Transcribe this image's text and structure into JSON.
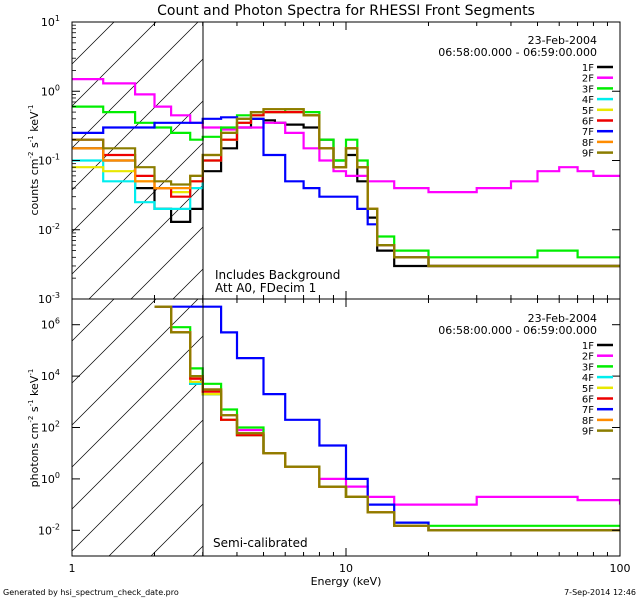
{
  "chart_data": [
    {
      "type": "line",
      "title": "Count and Photon Spectra for RHESSI Front Segments",
      "xlabel": "Energy (keV)",
      "ylabel": "counts cm-2 s-1 keV-1",
      "ylabel_parts": [
        "counts cm",
        "-2",
        " s",
        "-1",
        " keV",
        "-1"
      ],
      "xscale": "log",
      "yscale": "log",
      "xlim": [
        1,
        100
      ],
      "ylim": [
        0.001,
        10
      ],
      "y_ticks": [
        0.001,
        0.01,
        0.1,
        1,
        10
      ],
      "y_tick_labels": [
        {
          "base": "10",
          "exp": "-3"
        },
        {
          "base": "10",
          "exp": "-2"
        },
        {
          "base": "10",
          "exp": "-1"
        },
        {
          "base": "10",
          "exp": "0"
        },
        {
          "base": "10",
          "exp": "1"
        }
      ],
      "date": "23-Feb-2004",
      "time_range": "06:58:00.000 - 06:59:00.000",
      "annotations": [
        "Includes Background",
        "Att A0, FDecim 1"
      ],
      "legend_position": "top-right",
      "series": [
        {
          "name": "1F",
          "color": "#000000",
          "x": [
            1,
            1.3,
            1.7,
            2.0,
            2.3,
            2.7,
            3.0,
            3.5,
            4.0,
            4.5,
            5.0,
            5.5,
            6.0,
            7.0,
            8.0,
            9.0,
            10.0,
            11.0,
            12.0,
            13.0,
            15.0,
            20.0,
            30.0,
            50.0,
            70.0,
            100.0
          ],
          "y": [
            0.15,
            0.1,
            0.04,
            0.02,
            0.013,
            0.02,
            0.07,
            0.15,
            0.3,
            0.4,
            0.38,
            0.35,
            0.33,
            0.3,
            0.2,
            0.1,
            0.12,
            0.05,
            0.015,
            0.005,
            0.003,
            0.003,
            0.003,
            0.003,
            0.003,
            0.003
          ]
        },
        {
          "name": "2F",
          "color": "#ff00ff",
          "x": [
            1,
            1.3,
            1.7,
            2.0,
            2.3,
            2.7,
            3.0,
            3.5,
            4.0,
            5.0,
            6.0,
            7.0,
            8.0,
            9.0,
            10.0,
            12.0,
            15.0,
            20.0,
            30.0,
            40.0,
            50.0,
            60.0,
            70.0,
            80.0,
            90.0,
            100.0
          ],
          "y": [
            1.5,
            1.3,
            0.9,
            0.6,
            0.45,
            0.35,
            0.3,
            0.28,
            0.3,
            0.35,
            0.25,
            0.15,
            0.1,
            0.07,
            0.06,
            0.05,
            0.04,
            0.035,
            0.04,
            0.05,
            0.07,
            0.08,
            0.07,
            0.06,
            0.06,
            0.06
          ]
        },
        {
          "name": "3F",
          "color": "#00ee00",
          "x": [
            1,
            1.3,
            1.7,
            2.0,
            2.3,
            2.7,
            3.0,
            3.5,
            4.0,
            4.5,
            5.0,
            6.0,
            7.0,
            8.0,
            9.0,
            10.0,
            11.0,
            12.0,
            13.0,
            15.0,
            20.0,
            30.0,
            50.0,
            70.0,
            100.0
          ],
          "y": [
            0.6,
            0.5,
            0.35,
            0.3,
            0.25,
            0.2,
            0.22,
            0.3,
            0.45,
            0.5,
            0.5,
            0.55,
            0.5,
            0.2,
            0.1,
            0.2,
            0.1,
            0.02,
            0.008,
            0.005,
            0.004,
            0.004,
            0.005,
            0.004,
            0.004
          ]
        },
        {
          "name": "4F",
          "color": "#00eeee",
          "x": [
            1,
            1.3,
            1.7,
            2.0,
            2.3,
            2.7,
            3.0,
            3.5,
            4.0,
            4.5,
            5.0,
            6.0,
            7.0,
            8.0,
            9.0,
            10.0,
            11.0,
            12.0,
            13.0,
            15.0,
            20.0,
            30.0,
            50.0,
            70.0,
            100.0
          ],
          "y": [
            0.1,
            0.05,
            0.025,
            0.02,
            0.02,
            0.04,
            0.1,
            0.2,
            0.35,
            0.45,
            0.5,
            0.5,
            0.45,
            0.15,
            0.08,
            0.15,
            0.08,
            0.02,
            0.006,
            0.004,
            0.003,
            0.003,
            0.003,
            0.003,
            0.003
          ]
        },
        {
          "name": "5F",
          "color": "#e8e800",
          "x": [
            1,
            1.3,
            1.7,
            2.0,
            2.3,
            2.7,
            3.0,
            3.5,
            4.0,
            4.5,
            5.0,
            6.0,
            7.0,
            8.0,
            9.0,
            10.0,
            11.0,
            12.0,
            13.0,
            15.0,
            20.0,
            30.0,
            50.0,
            70.0,
            100.0
          ],
          "y": [
            0.08,
            0.07,
            0.05,
            0.04,
            0.035,
            0.05,
            0.1,
            0.2,
            0.35,
            0.45,
            0.5,
            0.5,
            0.45,
            0.15,
            0.08,
            0.15,
            0.08,
            0.02,
            0.006,
            0.004,
            0.003,
            0.003,
            0.003,
            0.003,
            0.003
          ]
        },
        {
          "name": "6F",
          "color": "#ee0000",
          "x": [
            1,
            1.3,
            1.7,
            2.0,
            2.3,
            2.7,
            3.0,
            3.5,
            4.0,
            4.5,
            5.0,
            6.0,
            7.0,
            8.0,
            9.0,
            10.0,
            11.0,
            12.0,
            13.0,
            15.0,
            20.0,
            30.0,
            50.0,
            70.0,
            100.0
          ],
          "y": [
            0.2,
            0.12,
            0.06,
            0.04,
            0.03,
            0.05,
            0.1,
            0.2,
            0.35,
            0.45,
            0.5,
            0.5,
            0.45,
            0.15,
            0.08,
            0.15,
            0.08,
            0.02,
            0.006,
            0.004,
            0.003,
            0.003,
            0.003,
            0.003,
            0.003
          ]
        },
        {
          "name": "7F",
          "color": "#0000ff",
          "x": [
            1,
            1.3,
            1.7,
            2.0,
            2.3,
            2.7,
            3.0,
            3.5,
            4.0,
            5.0,
            6.0,
            7.0,
            8.0,
            9.0,
            10.0,
            11.0,
            12.0,
            13.0,
            15.0,
            20.0,
            30.0,
            50.0,
            70.0,
            100.0
          ],
          "y": [
            0.25,
            0.3,
            0.3,
            0.35,
            0.35,
            0.35,
            0.4,
            0.42,
            0.4,
            0.12,
            0.05,
            0.04,
            0.03,
            0.03,
            0.03,
            0.02,
            0.012,
            0.006,
            0.004,
            0.003,
            0.003,
            0.003,
            0.003,
            0.003
          ]
        },
        {
          "name": "8F",
          "color": "#ff8c00",
          "x": [
            1,
            1.3,
            1.7,
            2.0,
            2.3,
            2.7,
            3.0,
            3.5,
            4.0,
            4.5,
            5.0,
            6.0,
            7.0,
            8.0,
            9.0,
            10.0,
            11.0,
            12.0,
            13.0,
            15.0,
            20.0,
            30.0,
            50.0,
            70.0,
            100.0
          ],
          "y": [
            0.15,
            0.1,
            0.05,
            0.04,
            0.04,
            0.06,
            0.12,
            0.25,
            0.4,
            0.5,
            0.55,
            0.55,
            0.45,
            0.15,
            0.08,
            0.15,
            0.08,
            0.02,
            0.006,
            0.004,
            0.003,
            0.003,
            0.003,
            0.003,
            0.003
          ]
        },
        {
          "name": "9F",
          "color": "#8b7d00",
          "x": [
            1,
            1.3,
            1.7,
            2.0,
            2.3,
            2.7,
            3.0,
            3.5,
            4.0,
            4.5,
            5.0,
            6.0,
            7.0,
            8.0,
            9.0,
            10.0,
            11.0,
            12.0,
            13.0,
            15.0,
            20.0,
            30.0,
            50.0,
            70.0,
            100.0
          ],
          "y": [
            0.2,
            0.15,
            0.08,
            0.05,
            0.045,
            0.06,
            0.12,
            0.25,
            0.4,
            0.5,
            0.55,
            0.55,
            0.45,
            0.15,
            0.08,
            0.15,
            0.08,
            0.02,
            0.006,
            0.004,
            0.003,
            0.003,
            0.003,
            0.003,
            0.003
          ]
        }
      ]
    },
    {
      "type": "line",
      "xlabel": "Energy (keV)",
      "ylabel": "photons cm-2 s-1 keV-1",
      "ylabel_parts": [
        "photons cm",
        "-2",
        " s",
        "-1",
        " keV",
        "-1"
      ],
      "xscale": "log",
      "yscale": "log",
      "xlim": [
        1,
        100
      ],
      "ylim": [
        0.001,
        10000000
      ],
      "x_ticks": [
        1,
        10,
        100
      ],
      "x_tick_labels": [
        "1",
        "10",
        "100"
      ],
      "y_ticks": [
        0.01,
        1,
        100,
        10000,
        1000000
      ],
      "y_tick_labels": [
        {
          "base": "10",
          "exp": "-2"
        },
        {
          "base": "10",
          "exp": "0"
        },
        {
          "base": "10",
          "exp": "2"
        },
        {
          "base": "10",
          "exp": "4"
        },
        {
          "base": "10",
          "exp": "6"
        }
      ],
      "date": "23-Feb-2004",
      "time_range": "06:58:00.000 - 06:59:00.000",
      "annotations": [
        "Semi-calibrated"
      ],
      "legend_position": "top-right",
      "series": [
        {
          "name": "1F",
          "color": "#000000",
          "x": [
            2.0,
            2.3,
            2.7,
            3.0,
            3.5,
            4.0,
            5.0,
            6.0,
            8.0,
            10.0,
            12.0,
            15.0,
            20.0,
            30.0,
            50.0,
            70.0,
            100.0
          ],
          "y": [
            5000000,
            500000,
            5000,
            2000,
            200,
            50,
            10,
            3,
            0.5,
            0.2,
            0.05,
            0.015,
            0.01,
            0.01,
            0.01,
            0.01,
            0.01
          ]
        },
        {
          "name": "2F",
          "color": "#ff00ff",
          "x": [
            2.0,
            2.3,
            2.7,
            3.0,
            3.5,
            4.0,
            5.0,
            6.0,
            8.0,
            10.0,
            12.0,
            15.0,
            20.0,
            30.0,
            50.0,
            70.0,
            100.0
          ],
          "y": [
            5000000,
            500000,
            8000,
            3000,
            300,
            80,
            10,
            3,
            1,
            0.5,
            0.2,
            0.1,
            0.1,
            0.2,
            0.2,
            0.15,
            0.1
          ]
        },
        {
          "name": "3F",
          "color": "#00ee00",
          "x": [
            2.0,
            2.3,
            2.7,
            3.0,
            3.5,
            4.0,
            5.0,
            6.0,
            8.0,
            10.0,
            12.0,
            15.0,
            20.0,
            30.0,
            50.0,
            70.0,
            100.0
          ],
          "y": [
            5000000,
            800000,
            20000,
            5000,
            500,
            100,
            10,
            3,
            0.5,
            0.2,
            0.05,
            0.02,
            0.015,
            0.015,
            0.015,
            0.015,
            0.015
          ]
        },
        {
          "name": "4F",
          "color": "#00eeee",
          "x": [
            2.0,
            2.3,
            2.7,
            3.0,
            3.5,
            4.0,
            5.0,
            6.0,
            8.0,
            10.0,
            12.0,
            15.0,
            20.0,
            30.0,
            50.0,
            70.0,
            100.0
          ],
          "y": [
            5000000,
            500000,
            5000,
            2000,
            200,
            50,
            10,
            3,
            0.5,
            0.2,
            0.05,
            0.015,
            0.01,
            0.01,
            0.01,
            0.01,
            0.01
          ]
        },
        {
          "name": "5F",
          "color": "#e8e800",
          "x": [
            2.0,
            2.3,
            2.7,
            3.0,
            3.5,
            4.0,
            5.0,
            6.0,
            8.0,
            10.0,
            12.0,
            15.0,
            20.0,
            30.0,
            50.0,
            70.0,
            100.0
          ],
          "y": [
            5000000,
            500000,
            6000,
            2000,
            200,
            50,
            10,
            3,
            0.5,
            0.2,
            0.05,
            0.015,
            0.01,
            0.01,
            0.01,
            0.01,
            0.01
          ]
        },
        {
          "name": "6F",
          "color": "#ee0000",
          "x": [
            2.0,
            2.3,
            2.7,
            3.0,
            3.5,
            4.0,
            5.0,
            6.0,
            8.0,
            10.0,
            12.0,
            15.0,
            20.0,
            30.0,
            50.0,
            70.0,
            100.0
          ],
          "y": [
            5000000,
            500000,
            8000,
            2500,
            200,
            50,
            10,
            3,
            0.5,
            0.2,
            0.05,
            0.015,
            0.01,
            0.01,
            0.01,
            0.01,
            0.01
          ]
        },
        {
          "name": "7F",
          "color": "#0000ff",
          "x": [
            2.0,
            2.3,
            2.7,
            3.0,
            3.5,
            4.0,
            5.0,
            6.0,
            8.0,
            10.0,
            12.0,
            15.0,
            20.0,
            30.0,
            50.0,
            70.0,
            100.0
          ],
          "y": [
            5000000,
            5000000,
            5000000,
            5000000,
            500000,
            50000,
            2000,
            200,
            20,
            1,
            0.1,
            0.02,
            0.01,
            0.01,
            0.01,
            0.01,
            0.01
          ]
        },
        {
          "name": "8F",
          "color": "#ff8c00",
          "x": [
            2.0,
            2.3,
            2.7,
            3.0,
            3.5,
            4.0,
            5.0,
            6.0,
            8.0,
            10.0,
            12.0,
            15.0,
            20.0,
            30.0,
            50.0,
            70.0,
            100.0
          ],
          "y": [
            5000000,
            500000,
            10000,
            3000,
            300,
            60,
            10,
            3,
            0.5,
            0.2,
            0.05,
            0.015,
            0.01,
            0.01,
            0.01,
            0.01,
            0.01
          ]
        },
        {
          "name": "9F",
          "color": "#8b7d00",
          "x": [
            2.0,
            2.3,
            2.7,
            3.0,
            3.5,
            4.0,
            5.0,
            6.0,
            8.0,
            10.0,
            12.0,
            15.0,
            20.0,
            30.0,
            50.0,
            70.0,
            100.0
          ],
          "y": [
            5000000,
            500000,
            10000,
            3000,
            300,
            60,
            10,
            3,
            0.5,
            0.2,
            0.05,
            0.015,
            0.01,
            0.01,
            0.01,
            0.01,
            0.01
          ]
        }
      ]
    }
  ],
  "footer": {
    "generated_by": "Generated by hsi_spectrum_check_date.pro",
    "timestamp": "7-Sep-2014 12:46"
  },
  "hatched_region_keV": [
    1,
    3
  ]
}
